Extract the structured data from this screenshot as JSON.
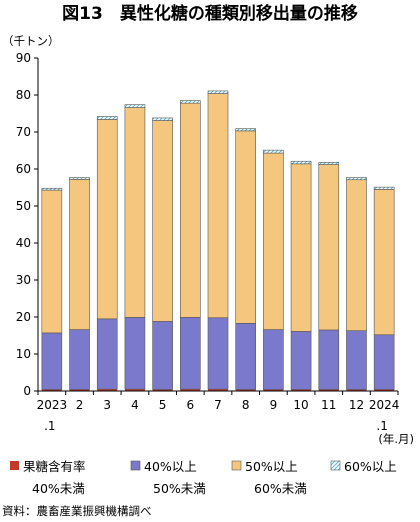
{
  "title": "図13　異性化糖の種類別移出量の推移",
  "y_unit": "（千トン）",
  "x_unit": "(年.月)",
  "source": "資料：農畜産業振興機構調べ",
  "colors": {
    "s1": "#c0392b",
    "s2": "#7b79cc",
    "s3": "#f5c77e",
    "s4": "#8fd3e8",
    "grid_axis": "#000000"
  },
  "legend": [
    {
      "line1": "果糖含有率",
      "line2": "40%未満"
    },
    {
      "line1": "40%以上",
      "line2": "50%未満"
    },
    {
      "line1": "50%以上",
      "line2": "60%未満"
    },
    {
      "line1": "60%以上",
      "line2": ""
    }
  ],
  "chart_data": {
    "type": "bar",
    "stacked": true,
    "categories": [
      {
        "line1": "2023",
        "line2": ".1"
      },
      {
        "line1": "2",
        "line2": ""
      },
      {
        "line1": "3",
        "line2": ""
      },
      {
        "line1": "4",
        "line2": ""
      },
      {
        "line1": "5",
        "line2": ""
      },
      {
        "line1": "6",
        "line2": ""
      },
      {
        "line1": "7",
        "line2": ""
      },
      {
        "line1": "8",
        "line2": ""
      },
      {
        "line1": "9",
        "line2": ""
      },
      {
        "line1": "10",
        "line2": ""
      },
      {
        "line1": "11",
        "line2": ""
      },
      {
        "line1": "12",
        "line2": ""
      },
      {
        "line1": "2024",
        "line2": ".1"
      }
    ],
    "series": [
      {
        "name": "果糖含有率 40%未満",
        "color": "#c0392b",
        "values": [
          0.4,
          0.4,
          0.5,
          0.5,
          0.4,
          0.5,
          0.5,
          0.4,
          0.4,
          0.4,
          0.4,
          0.4,
          0.4
        ]
      },
      {
        "name": "40%以上 50%未満",
        "color": "#7b79cc",
        "values": [
          15.3,
          16.2,
          19.0,
          19.4,
          18.4,
          19.4,
          19.3,
          17.9,
          16.2,
          15.7,
          16.1,
          15.9,
          14.8
        ]
      },
      {
        "name": "50%以上 60%未満",
        "color": "#f5c77e",
        "values": [
          38.6,
          40.6,
          53.9,
          56.7,
          54.3,
          57.9,
          60.6,
          52.0,
          47.7,
          45.3,
          44.7,
          40.8,
          39.3
        ]
      },
      {
        "name": "60%以上",
        "color": "#8fd3e8",
        "values": [
          0.5,
          0.5,
          0.8,
          0.8,
          0.7,
          0.7,
          0.7,
          0.6,
          0.8,
          0.7,
          0.6,
          0.6,
          0.6
        ]
      }
    ],
    "ylim": [
      0,
      90
    ],
    "yticks": [
      0,
      10,
      20,
      30,
      40,
      50,
      60,
      70,
      80,
      90
    ],
    "grid": false,
    "legend_position": "bottom"
  }
}
